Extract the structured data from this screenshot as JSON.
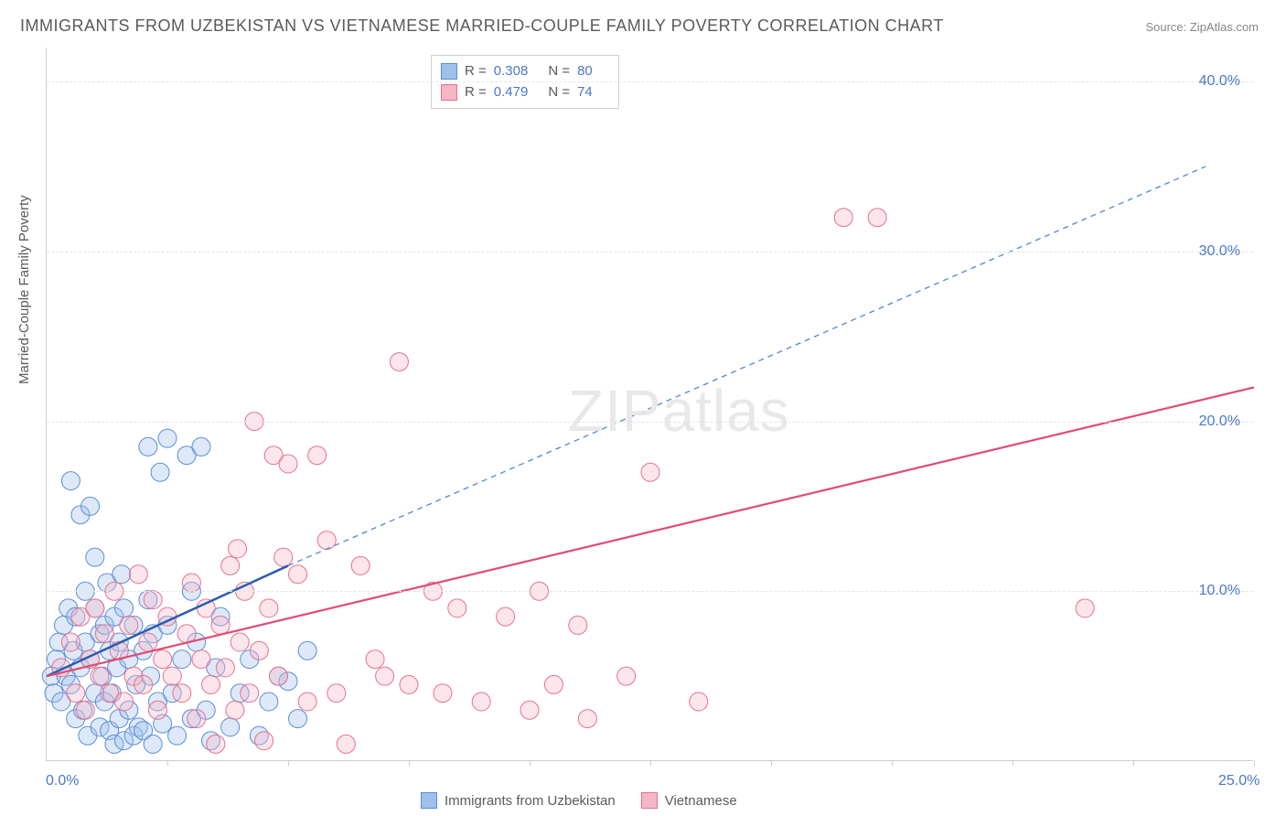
{
  "title": "IMMIGRANTS FROM UZBEKISTAN VS VIETNAMESE MARRIED-COUPLE FAMILY POVERTY CORRELATION CHART",
  "source_label": "Source: ZipAtlas.com",
  "watermark": {
    "bold": "ZIP",
    "light": "atlas"
  },
  "chart": {
    "type": "scatter",
    "background_color": "#ffffff",
    "grid_color": "#e5e5e5",
    "axis_color": "#cccccc",
    "axis_tick_fontsize": 16,
    "axis_tick_color": "#4a78c8",
    "ylabel": "Married-Couple Family Poverty",
    "ylabel_fontsize": 15,
    "ylabel_color": "#5a5a5a",
    "xlim": [
      0,
      25
    ],
    "ylim": [
      0,
      42
    ],
    "x_origin_label": "0.0%",
    "x_max_label": "25.0%",
    "x_tick_positions": [
      2.5,
      5,
      7.5,
      10,
      12.5,
      15,
      17.5,
      20,
      22.5,
      25
    ],
    "y_grid": [
      {
        "value": 10,
        "label": "10.0%"
      },
      {
        "value": 20,
        "label": "20.0%"
      },
      {
        "value": 30,
        "label": "30.0%"
      },
      {
        "value": 40,
        "label": "40.0%"
      }
    ],
    "marker_radius": 10,
    "marker_fill_opacity": 0.35,
    "marker_stroke_width": 1,
    "series": [
      {
        "name": "Immigrants from Uzbekistan",
        "color_fill": "#9fc0ea",
        "color_stroke": "#5b8dd6",
        "R": "0.308",
        "N": "80",
        "trend": {
          "solid": {
            "x1": 0,
            "y1": 5.0,
            "x2": 5,
            "y2": 11.5,
            "color": "#2a5db0",
            "width": 2.5
          },
          "dashed": {
            "x1": 5,
            "y1": 11.5,
            "x2": 24,
            "y2": 35.0,
            "color": "#5b8dd6",
            "width": 1.4,
            "dash": "6 5"
          }
        },
        "points": [
          [
            0.1,
            5.0
          ],
          [
            0.2,
            6.0
          ],
          [
            0.15,
            4.0
          ],
          [
            0.25,
            7.0
          ],
          [
            0.3,
            3.5
          ],
          [
            0.35,
            8.0
          ],
          [
            0.4,
            5.0
          ],
          [
            0.45,
            9.0
          ],
          [
            0.5,
            4.5
          ],
          [
            0.5,
            16.5
          ],
          [
            0.55,
            6.5
          ],
          [
            0.6,
            2.5
          ],
          [
            0.6,
            8.5
          ],
          [
            0.7,
            5.5
          ],
          [
            0.7,
            14.5
          ],
          [
            0.75,
            3.0
          ],
          [
            0.8,
            7.0
          ],
          [
            0.8,
            10.0
          ],
          [
            0.85,
            1.5
          ],
          [
            0.9,
            6.0
          ],
          [
            0.9,
            15.0
          ],
          [
            1.0,
            4.0
          ],
          [
            1.0,
            9.0
          ],
          [
            1.0,
            12.0
          ],
          [
            1.1,
            2.0
          ],
          [
            1.1,
            7.5
          ],
          [
            1.15,
            5.0
          ],
          [
            1.2,
            3.5
          ],
          [
            1.2,
            8.0
          ],
          [
            1.25,
            10.5
          ],
          [
            1.3,
            1.8
          ],
          [
            1.3,
            6.5
          ],
          [
            1.35,
            4.0
          ],
          [
            1.4,
            1.0
          ],
          [
            1.4,
            8.5
          ],
          [
            1.45,
            5.5
          ],
          [
            1.5,
            2.5
          ],
          [
            1.5,
            7.0
          ],
          [
            1.55,
            11.0
          ],
          [
            1.6,
            1.2
          ],
          [
            1.6,
            9.0
          ],
          [
            1.7,
            3.0
          ],
          [
            1.7,
            6.0
          ],
          [
            1.8,
            1.5
          ],
          [
            1.8,
            8.0
          ],
          [
            1.85,
            4.5
          ],
          [
            1.9,
            2.0
          ],
          [
            2.0,
            6.5
          ],
          [
            2.0,
            1.8
          ],
          [
            2.1,
            18.5
          ],
          [
            2.1,
            9.5
          ],
          [
            2.15,
            5.0
          ],
          [
            2.2,
            1.0
          ],
          [
            2.2,
            7.5
          ],
          [
            2.3,
            3.5
          ],
          [
            2.35,
            17.0
          ],
          [
            2.4,
            2.2
          ],
          [
            2.5,
            19.0
          ],
          [
            2.5,
            8.0
          ],
          [
            2.6,
            4.0
          ],
          [
            2.7,
            1.5
          ],
          [
            2.8,
            6.0
          ],
          [
            2.9,
            18.0
          ],
          [
            3.0,
            10.0
          ],
          [
            3.0,
            2.5
          ],
          [
            3.1,
            7.0
          ],
          [
            3.2,
            18.5
          ],
          [
            3.3,
            3.0
          ],
          [
            3.4,
            1.2
          ],
          [
            3.5,
            5.5
          ],
          [
            3.6,
            8.5
          ],
          [
            3.8,
            2.0
          ],
          [
            4.0,
            4.0
          ],
          [
            4.2,
            6.0
          ],
          [
            4.4,
            1.5
          ],
          [
            4.6,
            3.5
          ],
          [
            4.8,
            5.0
          ],
          [
            5.0,
            4.7
          ],
          [
            5.2,
            2.5
          ],
          [
            5.4,
            6.5
          ]
        ]
      },
      {
        "name": "Vietnamese",
        "color_fill": "#f5b6c6",
        "color_stroke": "#e5718f",
        "R": "0.479",
        "N": "74",
        "trend": {
          "solid": {
            "x1": 0,
            "y1": 5.0,
            "x2": 25,
            "y2": 22.0,
            "color": "#e14b73",
            "width": 2.2
          }
        },
        "points": [
          [
            0.3,
            5.5
          ],
          [
            0.5,
            7.0
          ],
          [
            0.6,
            4.0
          ],
          [
            0.7,
            8.5
          ],
          [
            0.8,
            3.0
          ],
          [
            0.9,
            6.0
          ],
          [
            1.0,
            9.0
          ],
          [
            1.1,
            5.0
          ],
          [
            1.2,
            7.5
          ],
          [
            1.3,
            4.0
          ],
          [
            1.4,
            10.0
          ],
          [
            1.5,
            6.5
          ],
          [
            1.6,
            3.5
          ],
          [
            1.7,
            8.0
          ],
          [
            1.8,
            5.0
          ],
          [
            1.9,
            11.0
          ],
          [
            2.0,
            4.5
          ],
          [
            2.1,
            7.0
          ],
          [
            2.2,
            9.5
          ],
          [
            2.3,
            3.0
          ],
          [
            2.4,
            6.0
          ],
          [
            2.5,
            8.5
          ],
          [
            2.6,
            5.0
          ],
          [
            2.8,
            4.0
          ],
          [
            2.9,
            7.5
          ],
          [
            3.0,
            10.5
          ],
          [
            3.1,
            2.5
          ],
          [
            3.2,
            6.0
          ],
          [
            3.3,
            9.0
          ],
          [
            3.4,
            4.5
          ],
          [
            3.5,
            1.0
          ],
          [
            3.6,
            8.0
          ],
          [
            3.7,
            5.5
          ],
          [
            3.8,
            11.5
          ],
          [
            3.9,
            3.0
          ],
          [
            4.0,
            7.0
          ],
          [
            4.1,
            10.0
          ],
          [
            4.2,
            4.0
          ],
          [
            4.3,
            20.0
          ],
          [
            4.4,
            6.5
          ],
          [
            4.5,
            1.2
          ],
          [
            4.6,
            9.0
          ],
          [
            4.7,
            18.0
          ],
          [
            4.8,
            5.0
          ],
          [
            5.0,
            17.5
          ],
          [
            5.2,
            11.0
          ],
          [
            5.4,
            3.5
          ],
          [
            5.6,
            18.0
          ],
          [
            5.8,
            13.0
          ],
          [
            6.0,
            4.0
          ],
          [
            6.2,
            1.0
          ],
          [
            6.5,
            11.5
          ],
          [
            7.0,
            5.0
          ],
          [
            7.3,
            23.5
          ],
          [
            7.5,
            4.5
          ],
          [
            8.0,
            10.0
          ],
          [
            8.2,
            4.0
          ],
          [
            8.5,
            9.0
          ],
          [
            9.0,
            3.5
          ],
          [
            9.5,
            8.5
          ],
          [
            10.0,
            3.0
          ],
          [
            10.5,
            4.5
          ],
          [
            11.0,
            8.0
          ],
          [
            11.2,
            2.5
          ],
          [
            12.0,
            5.0
          ],
          [
            12.5,
            17.0
          ],
          [
            13.5,
            3.5
          ],
          [
            16.5,
            32.0
          ],
          [
            17.2,
            32.0
          ],
          [
            21.5,
            9.0
          ],
          [
            10.2,
            10.0
          ],
          [
            6.8,
            6.0
          ],
          [
            4.9,
            12.0
          ],
          [
            3.95,
            12.5
          ]
        ]
      }
    ],
    "legend_top_labels": {
      "R": "R =",
      "N": "N ="
    },
    "legend_bottom_items": [
      {
        "label": "Immigrants from Uzbekistan",
        "fill": "#9fc0ea",
        "stroke": "#5b8dd6"
      },
      {
        "label": "Vietnamese",
        "fill": "#f5b6c6",
        "stroke": "#e5718f"
      }
    ]
  }
}
